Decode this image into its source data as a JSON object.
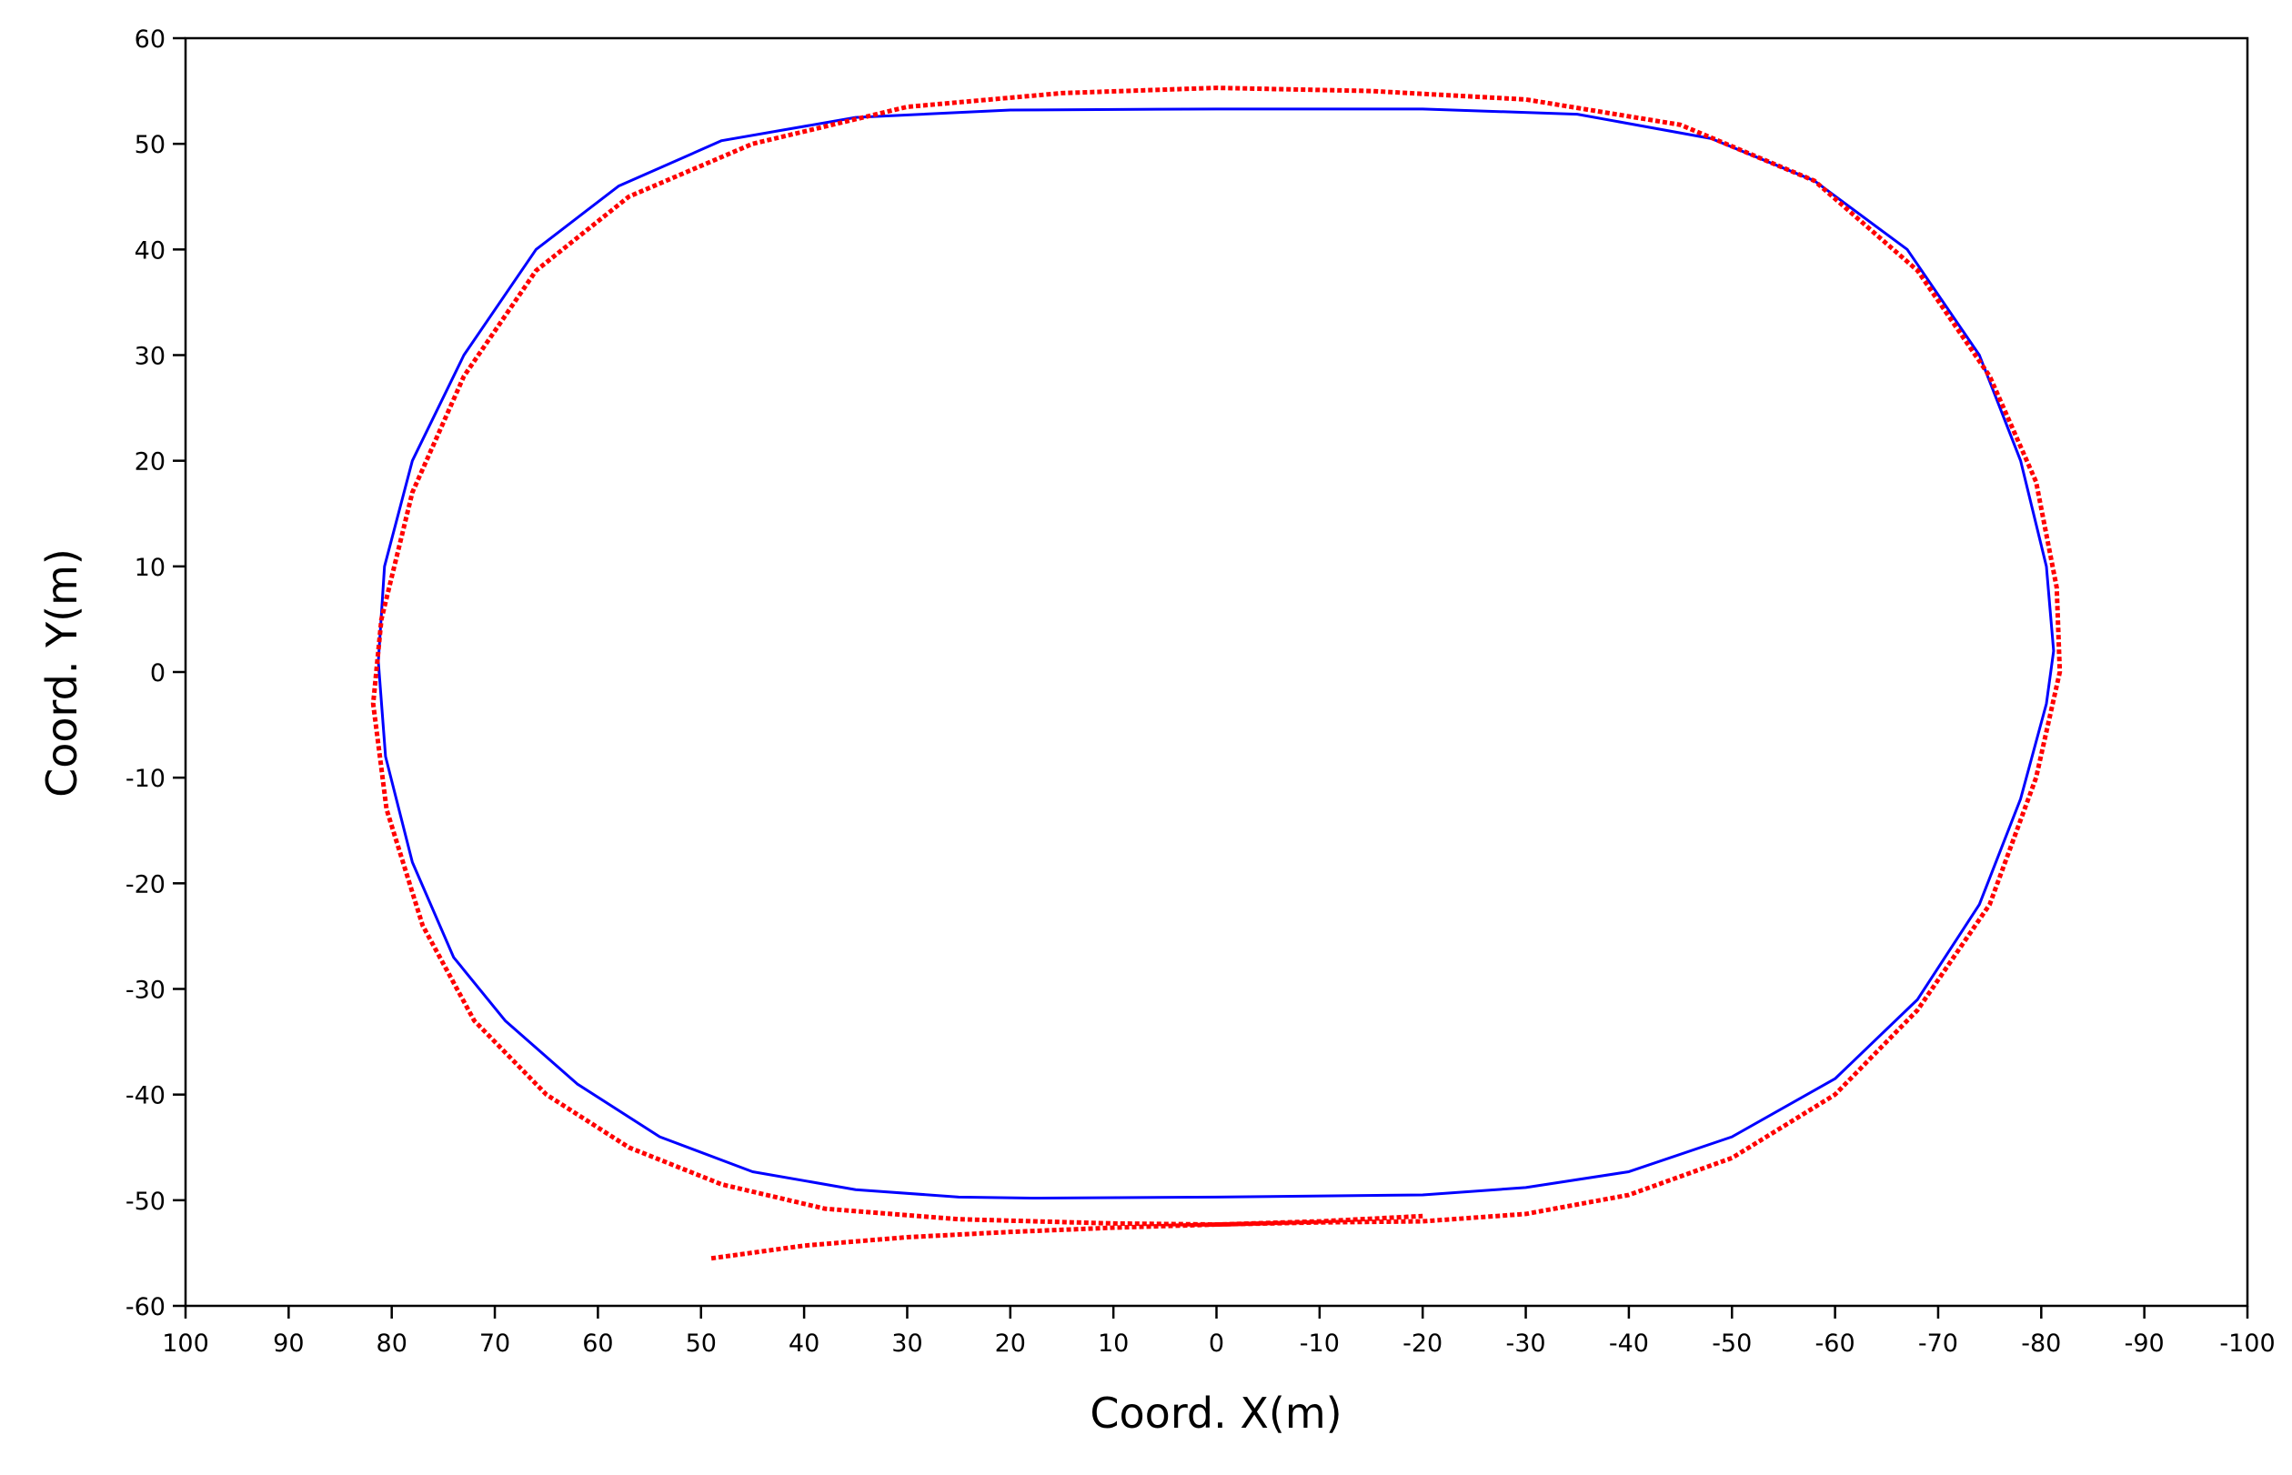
{
  "chart_data": {
    "type": "line",
    "x_label": "Coord. X(m)",
    "y_label": "Coord. Y(m)",
    "xlim": [
      100,
      -100
    ],
    "ylim": [
      -60,
      60
    ],
    "xticks": [
      100,
      90,
      80,
      70,
      60,
      50,
      40,
      30,
      20,
      10,
      0,
      -10,
      -20,
      -30,
      -40,
      -50,
      -60,
      -70,
      -80,
      -90,
      -100
    ],
    "yticks": [
      -60,
      -50,
      -40,
      -30,
      -20,
      -10,
      0,
      10,
      20,
      30,
      40,
      50,
      60
    ],
    "series": [
      {
        "color": "#0000ff",
        "style": "solid",
        "x": [
          18,
          0,
          -20,
          -30,
          -40,
          -50,
          -60,
          -68,
          -74,
          -78,
          -80.5,
          -81.2,
          -80.5,
          -78,
          -74,
          -67,
          -58,
          -48,
          -35,
          -20,
          0,
          20,
          35,
          48,
          58,
          66,
          73,
          78,
          80.7,
          81.3,
          80.6,
          78,
          74,
          69,
          62,
          54,
          45,
          35,
          25,
          18
        ],
        "values": [
          -49.8,
          -49.7,
          -49.5,
          -48.8,
          -47.3,
          -44,
          -38.5,
          -31,
          -22,
          -12,
          -3,
          2,
          10,
          20,
          30,
          40,
          46.5,
          50.5,
          52.8,
          53.3,
          53.3,
          53.2,
          52.5,
          50.3,
          46,
          40,
          30,
          20,
          10,
          1,
          -8,
          -18,
          -27,
          -33,
          -39,
          -44,
          -47.3,
          -49,
          -49.7,
          -49.8
        ]
      },
      {
        "color": "#ff0000",
        "style": "dotted",
        "x": [
          49,
          40,
          30,
          20,
          10,
          0,
          -10,
          -20,
          -30,
          -40,
          -50,
          -60,
          -68,
          -75,
          -79.5,
          -81.8,
          -81.5,
          -79.5,
          -75,
          -68,
          -58,
          -45,
          -30,
          -15,
          0,
          15,
          30,
          45,
          57,
          66,
          73,
          78,
          81,
          81.8,
          80.5,
          77,
          72,
          65,
          57,
          48,
          38,
          25,
          10,
          0,
          -10,
          -20
        ],
        "values": [
          -55.5,
          -54.3,
          -53.5,
          -53,
          -52.6,
          -52.3,
          -52.1,
          -52,
          -51.3,
          -49.5,
          -46,
          -40,
          -32,
          -22,
          -10,
          0,
          8,
          18,
          28,
          38,
          46.5,
          51.8,
          54.2,
          55,
          55.3,
          54.8,
          53.5,
          50,
          45,
          38,
          28,
          17,
          5,
          -3,
          -13,
          -24,
          -33,
          -40,
          -45,
          -48.5,
          -50.8,
          -51.8,
          -52.2,
          -52.3,
          -52,
          -51.5
        ]
      }
    ]
  }
}
